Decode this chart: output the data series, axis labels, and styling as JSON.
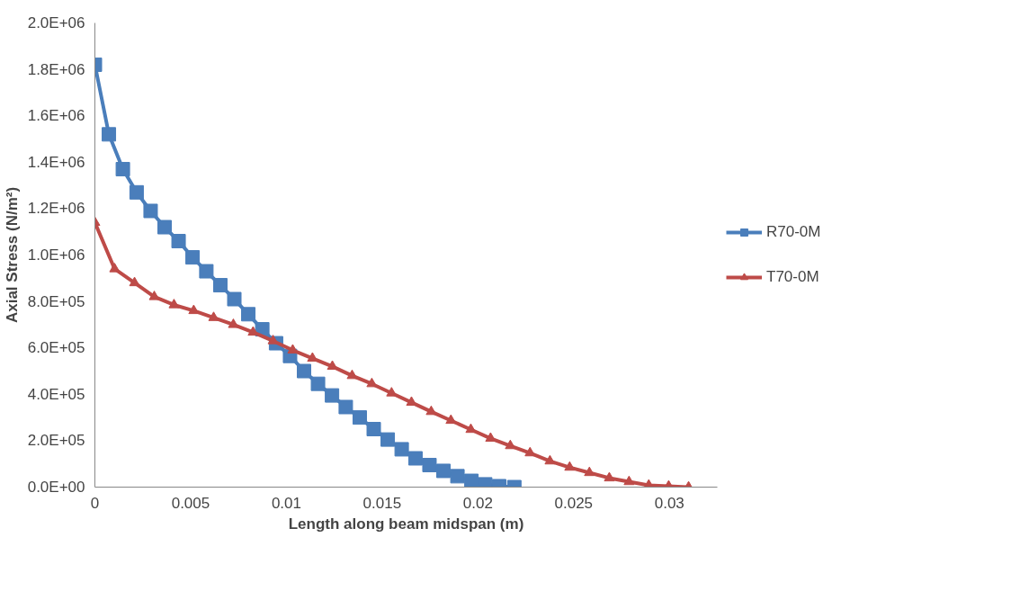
{
  "chart_data": {
    "type": "line",
    "xlabel": "Length along beam midspan (m)",
    "ylabel": "Axial Stress (N/m²)",
    "xlim": [
      0,
      0.0325
    ],
    "ylim": [
      0,
      2000000
    ],
    "xticks": [
      0,
      0.005,
      0.01,
      0.015,
      0.02,
      0.025,
      0.03
    ],
    "yticks": [
      {
        "value": 0,
        "label": "0.0E+00"
      },
      {
        "value": 200000,
        "label": "2.0E+05"
      },
      {
        "value": 400000,
        "label": "4.0E+05"
      },
      {
        "value": 600000,
        "label": "6.0E+05"
      },
      {
        "value": 800000,
        "label": "8.0E+05"
      },
      {
        "value": 1000000,
        "label": "1.0E+06"
      },
      {
        "value": 1200000,
        "label": "1.2E+06"
      },
      {
        "value": 1400000,
        "label": "1.4E+06"
      },
      {
        "value": 1600000,
        "label": "1.6E+06"
      },
      {
        "value": 1800000,
        "label": "1.8E+06"
      },
      {
        "value": 2000000,
        "label": "2.0E+06"
      }
    ],
    "grid": false,
    "legend": "right",
    "line_style": "solid",
    "series": [
      {
        "name": "R70-0M",
        "color": "#4a7ebb",
        "marker": "square",
        "x": [
          0,
          0.00073,
          0.00146,
          0.00218,
          0.00291,
          0.00364,
          0.00437,
          0.0051,
          0.00582,
          0.00655,
          0.00728,
          0.00801,
          0.00874,
          0.00946,
          0.01019,
          0.01092,
          0.01165,
          0.01238,
          0.0131,
          0.01383,
          0.01456,
          0.01529,
          0.01602,
          0.01674,
          0.01747,
          0.0182,
          0.01893,
          0.01966,
          0.02038,
          0.02111,
          0.0219
        ],
        "values": [
          1820000,
          1520000,
          1370000,
          1270000,
          1190000,
          1120000,
          1060000,
          990000,
          930000,
          870000,
          810000,
          745000,
          680000,
          620000,
          565000,
          500000,
          445000,
          395000,
          345000,
          300000,
          250000,
          205000,
          163000,
          124000,
          95000,
          70000,
          47000,
          27000,
          12000,
          4000,
          0
        ]
      },
      {
        "name": "T70-0M",
        "color": "#be4b48",
        "marker": "triangle",
        "x": [
          0,
          0.00103,
          0.00207,
          0.0031,
          0.00413,
          0.00516,
          0.0062,
          0.00723,
          0.00826,
          0.0093,
          0.01033,
          0.01136,
          0.0124,
          0.01343,
          0.01446,
          0.01549,
          0.01653,
          0.01756,
          0.01859,
          0.01963,
          0.02066,
          0.02169,
          0.02272,
          0.02376,
          0.02479,
          0.02582,
          0.02686,
          0.02789,
          0.02892,
          0.02996,
          0.031
        ],
        "values": [
          1140000,
          940000,
          880000,
          820000,
          785000,
          760000,
          730000,
          700000,
          667000,
          630000,
          590000,
          555000,
          520000,
          480000,
          445000,
          405000,
          365000,
          325000,
          287000,
          248000,
          210000,
          178000,
          147000,
          112000,
          85000,
          62000,
          39000,
          23000,
          8000,
          4000,
          0
        ]
      }
    ]
  }
}
